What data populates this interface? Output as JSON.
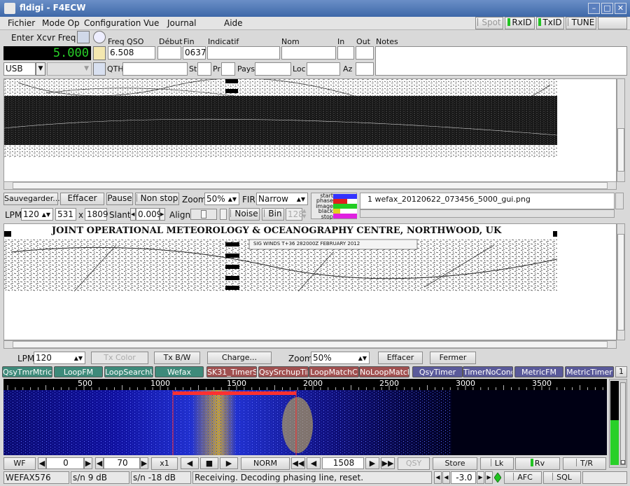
{
  "window": {
    "title": "fldigi - F4ECW"
  },
  "menu": [
    "Fichier",
    "Mode Op",
    "Configuration",
    "Vue",
    "Journal",
    "Aide"
  ],
  "toolbar": {
    "spot": "Spot",
    "rxid": "RxID",
    "txid": "TxID",
    "tune": "TUNE"
  },
  "xcvr": {
    "enter_label": "Enter Xcvr Freq",
    "freq_display": "5.000",
    "mode": "USB"
  },
  "log": {
    "freq_label": "Freq QSO",
    "freq_value": "6.508",
    "start_label": "Début",
    "end_label": "Fin",
    "end_value": "0637",
    "call_label": "Indicatif",
    "name_label": "Nom",
    "in_label": "In",
    "out_label": "Out",
    "notes_label": "Notes",
    "qth_label": "QTH",
    "st_label": "St",
    "pr_label": "Pr",
    "country_label": "Pays",
    "loc_label": "Loc",
    "az_label": "Az"
  },
  "wefax_rx": {
    "save": "Sauvegarder...",
    "clear": "Effacer",
    "pause": "Pause",
    "nonstop": "Non stop",
    "zoom_label": "Zoom",
    "zoom_value": "50%",
    "fir_label": "FIR",
    "fir_value": "Narrow",
    "status_labels": [
      "start",
      "phase",
      "image",
      "black",
      "stop"
    ],
    "filename": "1 wefax_20120622_073456_5000_gui.png",
    "lpm_label": "LPM",
    "lpm_value": "120",
    "width": "531",
    "x": "x",
    "height": "1809",
    "slant_label": "Slant",
    "slant_value": "0.009",
    "align_label": "Align",
    "noise": "Noise",
    "bin": "Bin",
    "bin_value": "128"
  },
  "fax_header": {
    "text": "JOINT OPERATIONAL METEOROLOGY & OCEANOGRAPHY CENTRE, NORTHWOOD, UK",
    "sub": "SIG WINDS T+36 282000Z FEBRUARY 2012"
  },
  "wefax_tx": {
    "lpm_label": "LPM",
    "lpm_value": "120",
    "tx_color": "Tx Color",
    "tx_bw": "Tx B/W",
    "load": "Charge...",
    "zoom_label": "Zoom",
    "zoom_value": "50%",
    "clear": "Effacer",
    "close": "Fermer"
  },
  "macros": [
    {
      "label": "QsyTmrMtric",
      "color": "#3e8a7a"
    },
    {
      "label": "LoopFM",
      "color": "#3e8a7a"
    },
    {
      "label": "LoopSearchU",
      "color": "#3e8a7a"
    },
    {
      "label": "Wefax",
      "color": "#3e8a7a"
    },
    {
      "label": "SK31_TimerS",
      "color": "#a05050"
    },
    {
      "label": "QsySrchupTim",
      "color": "#a05050"
    },
    {
      "label": "LoopMatchC",
      "color": "#a05050"
    },
    {
      "label": "NoLoopMatchC",
      "color": "#a05050"
    },
    {
      "label": "QsyTimer",
      "color": "#5a5a9a"
    },
    {
      "label": "TimerNoCondit",
      "color": "#5a5a9a"
    },
    {
      "label": "MetricFM",
      "color": "#5a5a9a"
    },
    {
      "label": "MetricTimer",
      "color": "#5a5a9a"
    }
  ],
  "macro_page": "1",
  "scale": {
    "ticks": [
      "500",
      "1000",
      "1500",
      "2000",
      "2500",
      "3000",
      "3500"
    ]
  },
  "wf_controls": {
    "wf": "WF",
    "offset": "0",
    "range": "70",
    "rate": "x1",
    "norm": "NORM",
    "freq": "1508",
    "qsy": "QSY",
    "store": "Store",
    "lk": "Lk",
    "rv": "Rv",
    "tr": "T/R"
  },
  "status": {
    "mode": "WEFAX576",
    "sn": "s/n  9 dB",
    "sn2": "s/n -18 dB",
    "message": "Receiving. Decoding phasing line, reset.",
    "sq_value": "-3.0",
    "afc": "AFC",
    "sql": "SQL"
  },
  "colors": {
    "accent": "#3f6ba8",
    "wf_bg": "#000014",
    "display_green": "#28d028"
  }
}
